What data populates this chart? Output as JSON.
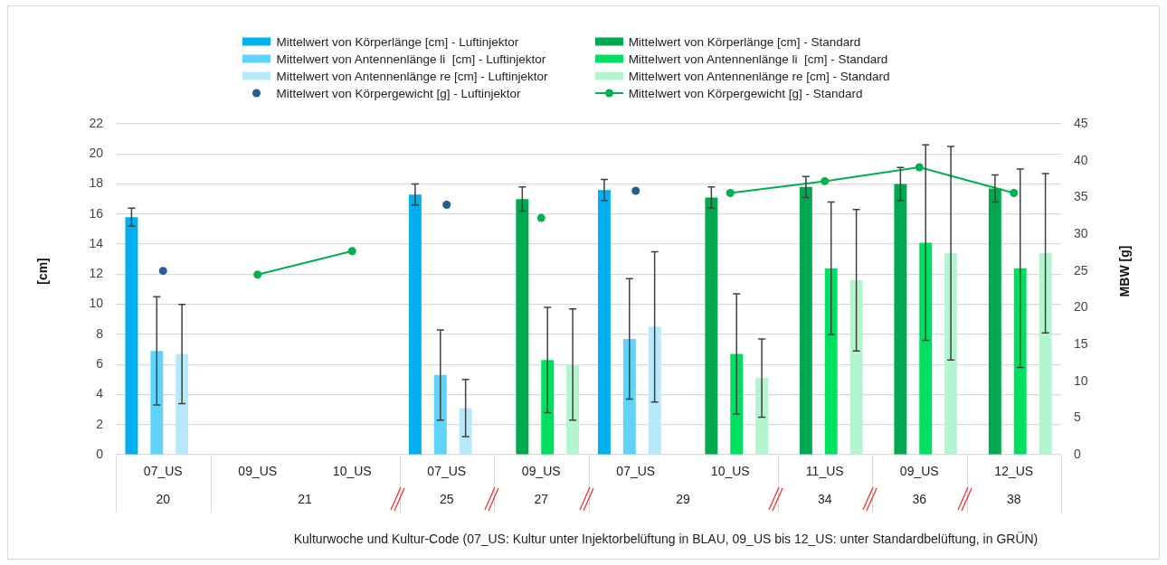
{
  "chart_data": {
    "type": "bar",
    "categories": [
      "07_US",
      "09_US",
      "10_US",
      "07_US",
      "09_US",
      "07_US",
      "10_US",
      "11_US",
      "09_US",
      "12_US"
    ],
    "series": [
      {
        "type": "bar",
        "name": "Mittelwert von Körperlänge [cm] - Luftinjektor",
        "color": "#00b0f0",
        "values": [
          15.8,
          null,
          null,
          17.3,
          null,
          17.6,
          null,
          null,
          null,
          null
        ],
        "errors": [
          0.6,
          null,
          null,
          0.7,
          null,
          0.7,
          null,
          null,
          null,
          null
        ]
      },
      {
        "type": "bar",
        "name": "Mittelwert von Körperlänge [cm] - Standard",
        "color": "#00a84f",
        "values": [
          null,
          null,
          null,
          null,
          17.0,
          null,
          17.1,
          17.8,
          18.0,
          17.7
        ],
        "errors": [
          null,
          null,
          null,
          null,
          0.8,
          null,
          0.7,
          0.7,
          1.1,
          0.9
        ]
      },
      {
        "type": "bar",
        "name": "Mittelwert von Antennenlänge li  [cm] - Luftinjektor",
        "color": "#5fd3fa",
        "values": [
          6.9,
          null,
          null,
          5.3,
          null,
          7.7,
          null,
          null,
          null,
          null
        ],
        "errors": [
          3.6,
          null,
          null,
          3.0,
          null,
          4.0,
          null,
          null,
          null,
          null
        ]
      },
      {
        "type": "bar",
        "name": "Mittelwert von Antennenlänge li  [cm] - Standard",
        "color": "#00e060",
        "values": [
          null,
          null,
          null,
          null,
          6.3,
          null,
          6.7,
          12.4,
          14.1,
          12.4
        ],
        "errors": [
          null,
          null,
          null,
          null,
          3.5,
          null,
          4.0,
          4.4,
          6.5,
          6.6
        ]
      },
      {
        "type": "bar",
        "name": "Mittelwert von Antennenlänge re [cm] - Luftinjektor",
        "color": "#b7e9fb",
        "values": [
          6.7,
          null,
          null,
          3.1,
          null,
          8.5,
          null,
          null,
          null,
          null
        ],
        "errors": [
          3.3,
          null,
          null,
          1.9,
          null,
          5.0,
          null,
          null,
          null,
          null
        ]
      },
      {
        "type": "bar",
        "name": "Mittelwert von Antennenlänge re [cm] - Standard",
        "color": "#b2f5cf",
        "values": [
          null,
          null,
          null,
          null,
          6.0,
          null,
          5.1,
          11.6,
          13.4,
          13.4
        ],
        "errors": [
          null,
          null,
          null,
          null,
          3.7,
          null,
          2.6,
          4.7,
          7.1,
          5.3
        ]
      },
      {
        "type": "scatter",
        "axis": "y2",
        "name": "Mittelwert von Körpergewicht [g] - Luftinjektor",
        "color": "#255e91",
        "values": [
          25.0,
          null,
          null,
          34.0,
          null,
          35.9,
          null,
          null,
          null,
          null
        ]
      },
      {
        "type": "line",
        "axis": "y2",
        "name": "Mittelwert von Körpergewicht [g] - Standard",
        "color": "#00b050",
        "values": [
          null,
          24.5,
          27.7,
          null,
          32.2,
          null,
          35.6,
          37.2,
          39.1,
          35.6
        ]
      }
    ],
    "ylim": [
      0,
      22
    ],
    "yticks": [
      0,
      2,
      4,
      6,
      8,
      10,
      12,
      14,
      16,
      18,
      20,
      22
    ],
    "y2lim": [
      0,
      45
    ],
    "y2ticks": [
      0,
      5,
      10,
      15,
      20,
      25,
      30,
      35,
      40,
      45
    ],
    "ylabel": "[cm]",
    "y2label": "MBW [g]",
    "xlabel": "Kulturwoche und Kultur-Code (07_US: Kultur unter Injektorbelüftung in BLAU, 09_US bis 12_US: unter Standardbelüftung, in GRÜN)",
    "annotations": [
      "20",
      "21",
      "25",
      "27",
      "29",
      "34",
      "36",
      "38"
    ],
    "legend": "top",
    "grid": "y",
    "marker": "circle"
  }
}
